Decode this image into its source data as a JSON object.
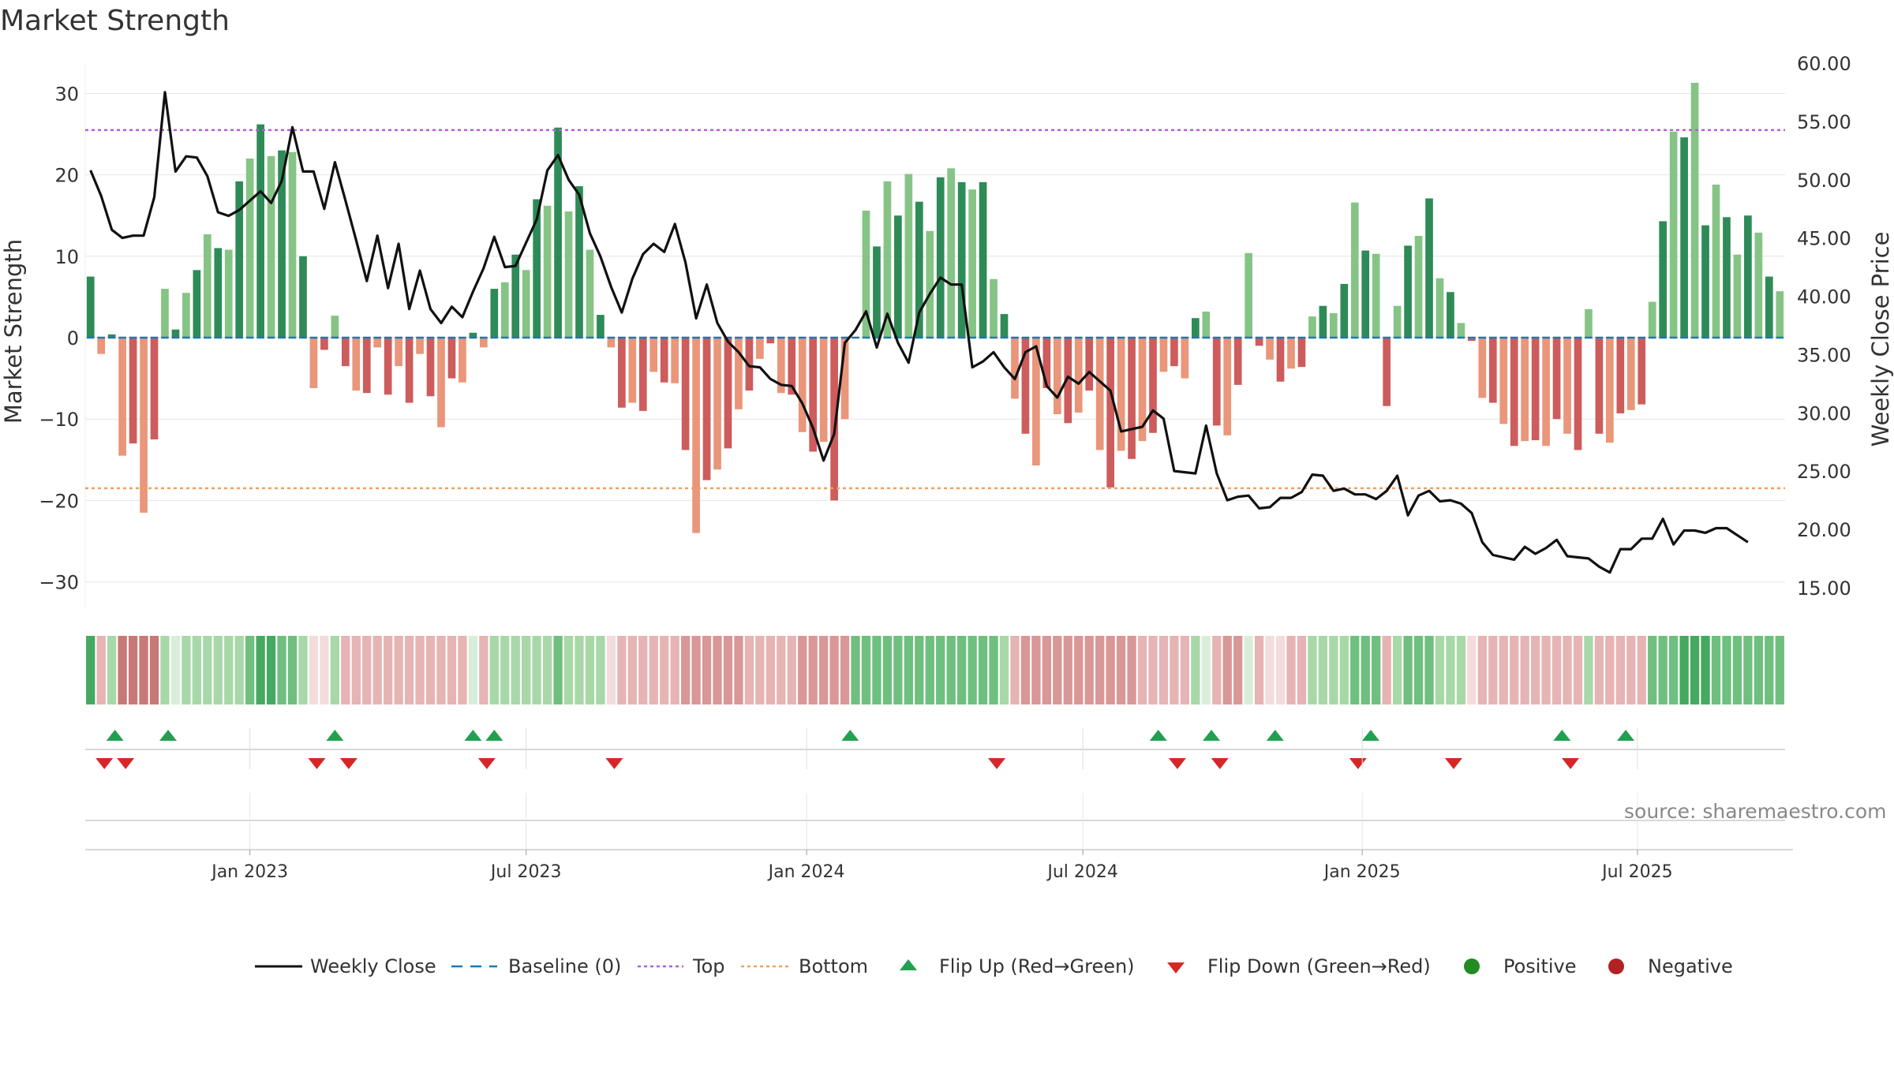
{
  "title": "Market Strength",
  "source": "source: sharemaestro.com",
  "colors": {
    "strong_pos": "#2e8b57",
    "weak_pos": "#86c486",
    "strong_neg": "#cd5c5c",
    "weak_neg": "#e9967a",
    "close_line": "#111111",
    "baseline": "#1f77b4",
    "top": "#b05fd6",
    "bottom": "#f0a060",
    "flip_up": "#22a050",
    "flip_down": "#d62728",
    "positive": "#228b22",
    "negative": "#b22222"
  },
  "chart_data": {
    "type": "bar",
    "title": "Market Strength",
    "ylabel": "Market Strength",
    "y2label": "Weekly Close Price",
    "ylim": [
      -34,
      34
    ],
    "y2lim": [
      13.3,
      60.0
    ],
    "yticks": [
      30,
      20,
      10,
      0,
      -10,
      -20,
      -30
    ],
    "y2ticks": [
      "60.00",
      "55.00",
      "50.00",
      "45.00",
      "40.00",
      "35.00",
      "30.00",
      "25.00",
      "20.00",
      "15.00"
    ],
    "top_level": 25.5,
    "bottom_level": -18.5,
    "baseline": 0,
    "x_start": "2022-10-03",
    "x_end": "2025-09-08",
    "xticks": [
      {
        "label": "Jan 2023",
        "week": 15
      },
      {
        "label": "Jul 2023",
        "week": 41
      },
      {
        "label": "Jan 2024",
        "week": 67.4
      },
      {
        "label": "Jul 2024",
        "week": 93.4
      },
      {
        "label": "Jan 2025",
        "week": 119.7
      },
      {
        "label": "Jul 2025",
        "week": 145.6
      }
    ],
    "strength": [
      7.5,
      -2,
      0.4,
      -14.5,
      -13,
      -21.5,
      -12.5,
      6,
      1,
      5.5,
      8.3,
      12.7,
      11,
      10.8,
      19.2,
      22,
      26.2,
      22.3,
      23,
      22.8,
      10,
      -6.2,
      -1.5,
      2.7,
      -3.5,
      -6.5,
      -6.8,
      -1.2,
      -7,
      -3.5,
      -8,
      -2,
      -7.2,
      -11,
      -5,
      -5.5,
      0.6,
      -1.2,
      6,
      6.8,
      10.2,
      8.3,
      17,
      16.2,
      25.8,
      15.5,
      18.6,
      10.8,
      2.8,
      -1.2,
      -8.6,
      -8,
      -9,
      -4.2,
      -5.5,
      -5.6,
      -13.8,
      -24,
      -17.5,
      -16.2,
      -13.6,
      -8.8,
      -6.5,
      -2.6,
      -0.7,
      -6.8,
      -7,
      -11.6,
      -14,
      -12.8,
      -20,
      -10,
      0.1,
      15.6,
      11.2,
      19.2,
      15,
      20.1,
      16.7,
      13.1,
      19.7,
      20.8,
      19.1,
      18.2,
      19.1,
      7.2,
      2.9,
      -7.5,
      -11.8,
      -15.7,
      -6.2,
      -9.4,
      -10.5,
      -9.2,
      -6.5,
      -13.8,
      -18.4,
      -13.9,
      -14.9,
      -12.7,
      -11.7,
      -4.2,
      -3.5,
      -5,
      2.4,
      3.2,
      -10.8,
      -12,
      -5.8,
      10.4,
      -1,
      -2.7,
      -5.4,
      -3.8,
      -3.6,
      2.6,
      3.9,
      3,
      6.6,
      16.6,
      10.7,
      10.3,
      -8.4,
      3.9,
      11.3,
      12.5,
      17.1,
      7.3,
      5.6,
      1.8,
      -0.4,
      -7.4,
      -8,
      -10.6,
      -13.3,
      -12.7,
      -12.6,
      -13.3,
      -10,
      -11.8,
      -13.8,
      3.5,
      -11.8,
      -12.9,
      -9.3,
      -8.9,
      -8.2,
      4.4,
      14.3,
      25.3,
      24.6,
      31.3,
      13.8,
      18.8,
      14.8,
      10.2,
      15,
      12.9,
      7.5,
      5.7
    ],
    "close": [
      50.8,
      48.6,
      45.7,
      45,
      45.2,
      45.2,
      48.5,
      57.5,
      50.7,
      52,
      51.9,
      50.3,
      47.2,
      46.9,
      47.4,
      48.2,
      49,
      48,
      49.9,
      54.5,
      50.7,
      50.7,
      47.5,
      51.5,
      48.2,
      44.8,
      41.3,
      45.2,
      40.7,
      44.5,
      38.9,
      42.2,
      38.9,
      37.7,
      39.1,
      38.2,
      40.4,
      42.4,
      45.1,
      42.5,
      42.6,
      44.6,
      46.6,
      50.8,
      52.1,
      50,
      48.7,
      45.4,
      43.4,
      40.8,
      38.6,
      41.5,
      43.6,
      44.5,
      43.8,
      46.2,
      42.9,
      38.1,
      41,
      37.7,
      36.1,
      35.2,
      34,
      33.9,
      32.9,
      32.4,
      32.3,
      30.8,
      28.7,
      25.9,
      28.2,
      36,
      37.1,
      38.7,
      35.6,
      38.5,
      36,
      34.3,
      38.6,
      40.2,
      41.6,
      41,
      41,
      33.9,
      34.4,
      35.2,
      33.9,
      32.9,
      35.2,
      35.7,
      32.3,
      31.3,
      33.1,
      32.5,
      33.5,
      32.7,
      31.9,
      28.4,
      28.6,
      28.8,
      30.2,
      29.5,
      25,
      24.9,
      24.8,
      28.9,
      24.8,
      22.5,
      22.8,
      22.9,
      21.8,
      21.9,
      22.7,
      22.7,
      23.2,
      24.7,
      24.6,
      23.3,
      23.5,
      23,
      23,
      22.6,
      23.3,
      24.6,
      21.2,
      22.9,
      23.3,
      22.4,
      22.5,
      22.2,
      21.4,
      18.9,
      17.8,
      17.6,
      17.4,
      18.5,
      17.9,
      18.4,
      19.1,
      17.7,
      17.6,
      17.5,
      16.8,
      16.3,
      18.3,
      18.3,
      19.2,
      19.2,
      20.9,
      18.7,
      19.9,
      19.9,
      19.7,
      20.1,
      20.1,
      19.5,
      18.9
    ],
    "band_shades": [
      3,
      1,
      1,
      3,
      3,
      3,
      3,
      1,
      0,
      1,
      1,
      1,
      1,
      1,
      1,
      2,
      3,
      3,
      2,
      2,
      1,
      0,
      0,
      1,
      1,
      1,
      1,
      1,
      1,
      1,
      1,
      1,
      1,
      1,
      1,
      1,
      0,
      1,
      1,
      1,
      1,
      1,
      1,
      1,
      2,
      1,
      1,
      1,
      1,
      0,
      1,
      1,
      1,
      1,
      1,
      1,
      2,
      2,
      2,
      2,
      2,
      2,
      1,
      1,
      1,
      1,
      1,
      2,
      2,
      2,
      2,
      2,
      2,
      2,
      2,
      2,
      2,
      2,
      2,
      2,
      2,
      2,
      2,
      2,
      2,
      2,
      1,
      1,
      2,
      2,
      2,
      2,
      2,
      2,
      2,
      2,
      2,
      2,
      2,
      1,
      1,
      1,
      1,
      1,
      1,
      0,
      1,
      2,
      2,
      0,
      1,
      0,
      0,
      1,
      1,
      1,
      1,
      1,
      1,
      2,
      2,
      2,
      1,
      1,
      2,
      2,
      2,
      1,
      1,
      1,
      0,
      1,
      1,
      1,
      1,
      1,
      1,
      1,
      1,
      1,
      1,
      1,
      1,
      1,
      1,
      1,
      1,
      2,
      2,
      2,
      3,
      3,
      3,
      2,
      2,
      2,
      2,
      2,
      2,
      2,
      2,
      1
    ],
    "flip_up_weeks": [
      2.3,
      7.3,
      23,
      36,
      38,
      71.5,
      100.5,
      105.5,
      111.5,
      120.5,
      138.5,
      144.5
    ],
    "flip_down_weeks": [
      1.3,
      3.3,
      21.3,
      24.3,
      37.3,
      49.3,
      85.3,
      102.3,
      106.3,
      119.3,
      128.3,
      139.3
    ]
  },
  "legend": [
    {
      "label": "Weekly Close",
      "marker": "line"
    },
    {
      "label": "Baseline (0)",
      "marker": "dash"
    },
    {
      "label": "Top",
      "marker": "dot-purple"
    },
    {
      "label": "Bottom",
      "marker": "dot-orange"
    },
    {
      "label": "Flip Up (Red→Green)",
      "marker": "triangle-up"
    },
    {
      "label": "Flip Down (Green→Red)",
      "marker": "triangle-down"
    },
    {
      "label": "Positive",
      "marker": "circle-green"
    },
    {
      "label": "Negative",
      "marker": "circle-red"
    }
  ]
}
